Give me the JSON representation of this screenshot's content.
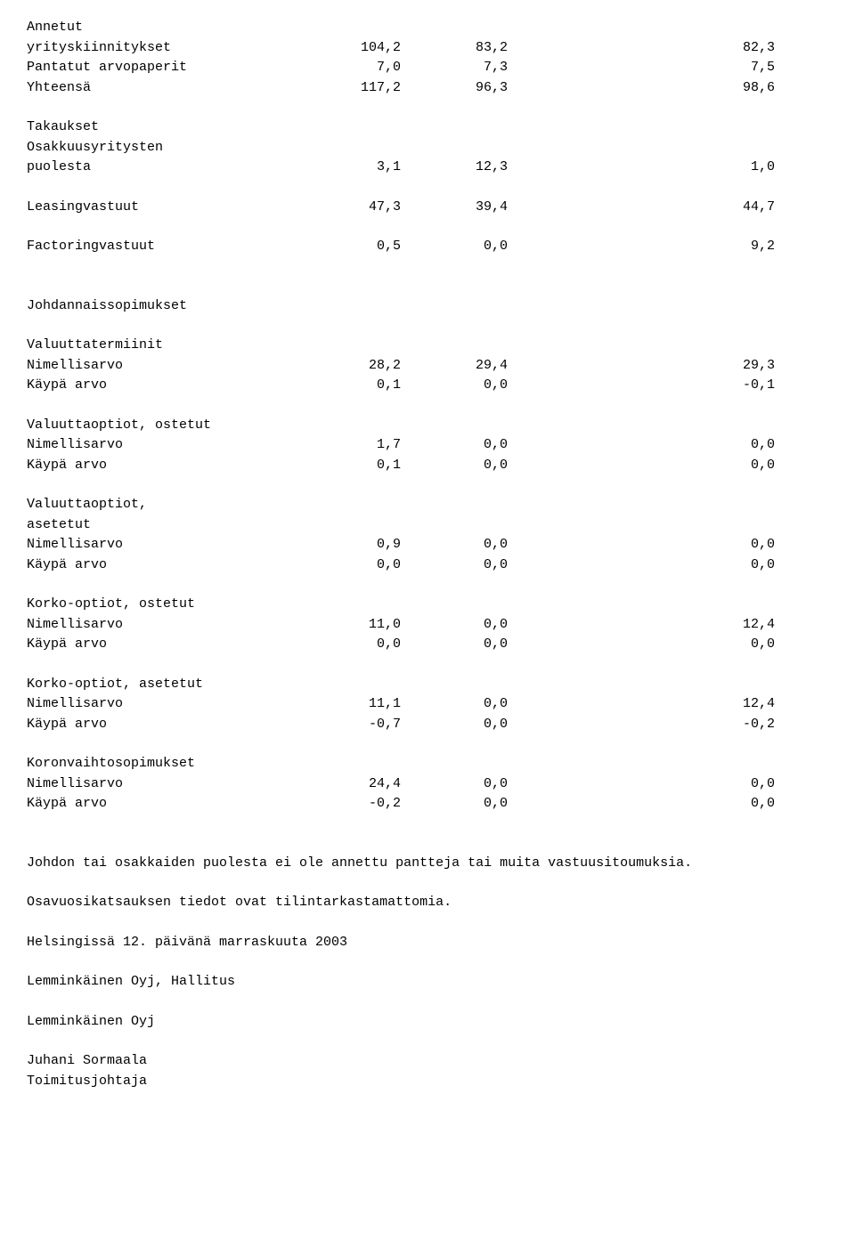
{
  "tables": {
    "annetut_header": "Annetut",
    "rows1": [
      {
        "label": "yrityskiinnitykset",
        "c1": "104,2",
        "c2": "83,2",
        "c3": "82,3"
      },
      {
        "label": "Pantatut arvopaperit",
        "c1": "7,0",
        "c2": "7,3",
        "c3": "7,5"
      },
      {
        "label": "Yhteensä",
        "c1": "117,2",
        "c2": "96,3",
        "c3": "98,6"
      }
    ],
    "takaukset_h1": "Takaukset",
    "takaukset_h2": "Osakkuusyritysten",
    "takaukset_row": {
      "label": "puolesta",
      "c1": "3,1",
      "c2": "12,3",
      "c3": "1,0"
    },
    "leasing": {
      "label": "Leasingvastuut",
      "c1": "47,3",
      "c2": "39,4",
      "c3": "44,7"
    },
    "factoring": {
      "label": "Factoringvastuut",
      "c1": "0,5",
      "c2": "0,0",
      "c3": "9,2"
    },
    "johdannais_header": "Johdannaissopimukset",
    "valuuttatermiinit_h": "Valuuttatermiinit",
    "valuuttatermiinit": [
      {
        "label": "Nimellisarvo",
        "c1": "28,2",
        "c2": "29,4",
        "c3": "29,3"
      },
      {
        "label": "Käypä arvo",
        "c1": "0,1",
        "c2": "0,0",
        "c3": "-0,1"
      }
    ],
    "valuuttaoptiot_ost_h": "Valuuttaoptiot, ostetut",
    "valuuttaoptiot_ost": [
      {
        "label": "Nimellisarvo",
        "c1": "1,7",
        "c2": "0,0",
        "c3": "0,0"
      },
      {
        "label": "Käypä arvo",
        "c1": "0,1",
        "c2": "0,0",
        "c3": "0,0"
      }
    ],
    "valuuttaoptiot_as_h1": "Valuuttaoptiot,",
    "valuuttaoptiot_as_h2": "asetetut",
    "valuuttaoptiot_as": [
      {
        "label": "Nimellisarvo",
        "c1": "0,9",
        "c2": "0,0",
        "c3": "0,0"
      },
      {
        "label": "Käypä arvo",
        "c1": "0,0",
        "c2": "0,0",
        "c3": "0,0"
      }
    ],
    "korko_ost_h": "Korko-optiot, ostetut",
    "korko_ost": [
      {
        "label": "Nimellisarvo",
        "c1": "11,0",
        "c2": "0,0",
        "c3": "12,4"
      },
      {
        "label": "Käypä arvo",
        "c1": "0,0",
        "c2": "0,0",
        "c3": "0,0"
      }
    ],
    "korko_as_h": "Korko-optiot, asetetut",
    "korko_as": [
      {
        "label": "Nimellisarvo",
        "c1": "11,1",
        "c2": "0,0",
        "c3": "12,4"
      },
      {
        "label": "Käypä arvo",
        "c1": "-0,7",
        "c2": "0,0",
        "c3": "-0,2"
      }
    ],
    "koronvaihto_h": "Koronvaihtosopimukset",
    "koronvaihto": [
      {
        "label": "Nimellisarvo",
        "c1": "24,4",
        "c2": "0,0",
        "c3": "0,0"
      },
      {
        "label": "Käypä arvo",
        "c1": "-0,2",
        "c2": "0,0",
        "c3": "0,0"
      }
    ]
  },
  "paragraphs": {
    "p1": "Johdon tai osakkaiden puolesta ei ole annettu pantteja tai muita vastuusitoumuksia.",
    "p2": "Osavuosikatsauksen tiedot ovat tilintarkastamattomia.",
    "p3": "Helsingissä 12. päivänä marraskuuta 2003",
    "p4": "Lemminkäinen Oyj, Hallitus",
    "p5": "Lemminkäinen Oyj",
    "sig1": "Juhani Sormaala",
    "sig2": "Toimitusjohtaja"
  }
}
